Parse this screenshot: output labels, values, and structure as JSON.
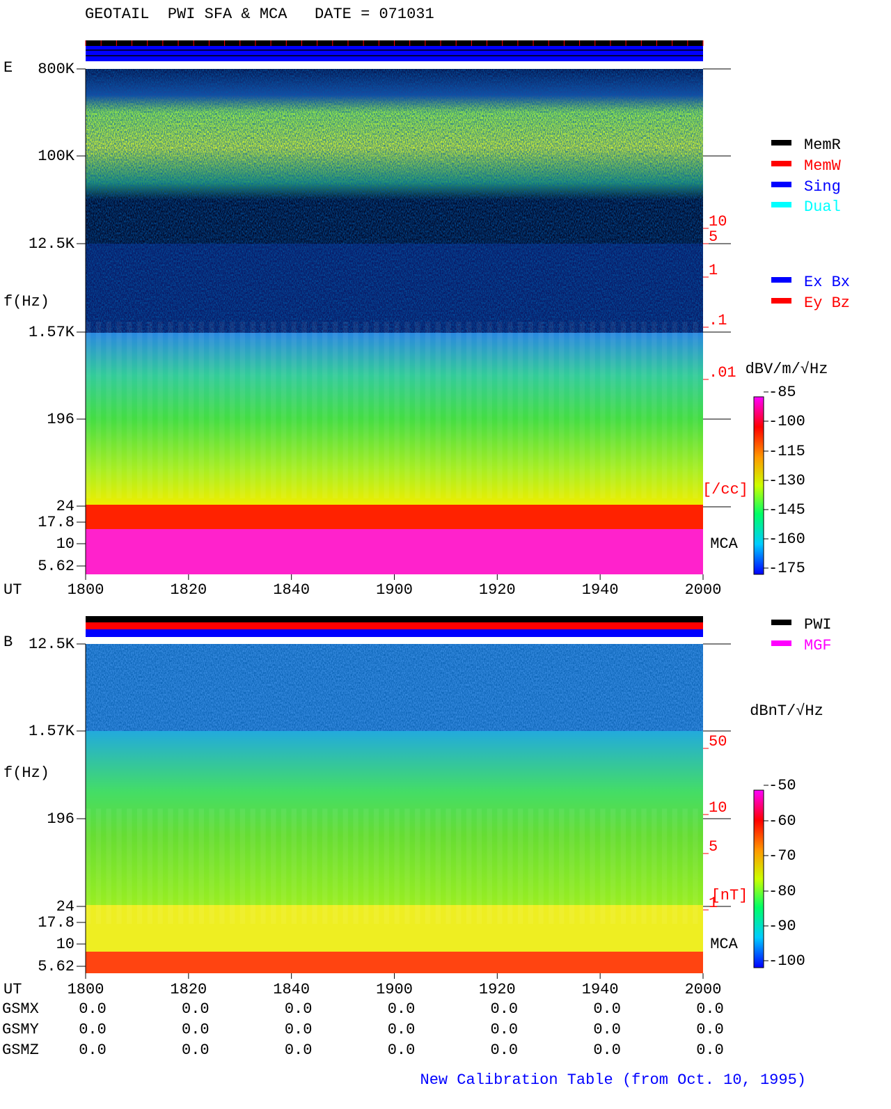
{
  "header": {
    "title": "GEOTAIL  PWI SFA & MCA   DATE = 071031"
  },
  "panels": [
    {
      "label": "E",
      "y_label": "f(Hz)",
      "y_ticks": [
        "800K",
        "100K",
        "12.5K",
        "1.57K",
        "196",
        "24",
        "17.8",
        "10",
        "5.62"
      ],
      "density_ticks": [
        "10",
        "5",
        "1",
        ".1",
        ".01"
      ],
      "density_unit": "[/cc]",
      "mca": "MCA",
      "unit": "dBV/m/√Hz",
      "colorbar_ticks": [
        "-85",
        "-100",
        "-115",
        "-130",
        "-145",
        "-160",
        "-175"
      ],
      "legend": [
        {
          "name": "MemR",
          "color": "#000000"
        },
        {
          "name": "MemW",
          "color": "#ff0000"
        },
        {
          "name": "Sing",
          "color": "#0000ff"
        },
        {
          "name": "Dual",
          "color": "#00ffff"
        },
        {
          "name": "Ex Bx",
          "color": "#0000ff"
        },
        {
          "name": "Ey Bz",
          "color": "#ff0000"
        }
      ],
      "x_label": "UT",
      "x_ticks": [
        "1800",
        "1820",
        "1840",
        "1900",
        "1920",
        "1940",
        "2000"
      ]
    },
    {
      "label": "B",
      "y_label": "f(Hz)",
      "y_ticks": [
        "12.5K",
        "1.57K",
        "196",
        "24",
        "17.8",
        "10",
        "5.62"
      ],
      "density_ticks": [
        "50",
        "10",
        "5",
        "1"
      ],
      "density_unit": "[nT]",
      "mca": "MCA",
      "unit": "dBnT/√Hz",
      "colorbar_ticks": [
        "-50",
        "-60",
        "-70",
        "-80",
        "-90",
        "-100"
      ],
      "legend": [
        {
          "name": "PWI",
          "color": "#000000"
        },
        {
          "name": "MGF",
          "color": "#ff00ff"
        }
      ],
      "x_label": "UT",
      "x_ticks": [
        "1800",
        "1820",
        "1840",
        "1900",
        "1920",
        "1940",
        "2000"
      ]
    }
  ],
  "coordinates": {
    "rows": [
      {
        "name": "GSMX",
        "values": [
          "0.0",
          "0.0",
          "0.0",
          "0.0",
          "0.0",
          "0.0",
          "0.0"
        ]
      },
      {
        "name": "GSMY",
        "values": [
          "0.0",
          "0.0",
          "0.0",
          "0.0",
          "0.0",
          "0.0",
          "0.0"
        ]
      },
      {
        "name": "GSMZ",
        "values": [
          "0.0",
          "0.0",
          "0.0",
          "0.0",
          "0.0",
          "0.0",
          "0.0"
        ]
      }
    ]
  },
  "footer": "New Calibration Table (from Oct. 10, 1995)"
}
